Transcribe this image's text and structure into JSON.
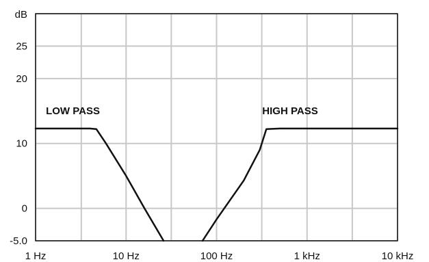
{
  "chart_data": {
    "type": "line",
    "title": "",
    "xlabel": "",
    "ylabel": "dB",
    "x_scale": "log",
    "xlim": [
      1,
      10000
    ],
    "ylim": [
      -5,
      30
    ],
    "grid": true,
    "x_ticks": [
      {
        "value": 1,
        "label": "1 Hz"
      },
      {
        "value": 10,
        "label": "10 Hz"
      },
      {
        "value": 100,
        "label": "100 Hz"
      },
      {
        "value": 1000,
        "label": "1 kHz"
      },
      {
        "value": 10000,
        "label": "10 kHz"
      }
    ],
    "x_minor_gridlines": [
      3.2,
      31.6,
      316,
      3162
    ],
    "y_ticks": [
      {
        "value": -5,
        "label": "-5.0"
      },
      {
        "value": 0,
        "label": "0"
      },
      {
        "value": 10,
        "label": "10"
      },
      {
        "value": 20,
        "label": "20"
      },
      {
        "value": 25,
        "label": "25"
      }
    ],
    "y_gridlines": [
      -5,
      0,
      10,
      20,
      25,
      30
    ],
    "series": [
      {
        "name": "LOW PASS",
        "x": [
          1,
          2,
          4,
          4.7,
          6,
          10,
          16,
          26
        ],
        "y": [
          12.3,
          12.3,
          12.3,
          12.2,
          10,
          5,
          0,
          -5
        ]
      },
      {
        "name": "HIGH PASS",
        "x": [
          70,
          100,
          200,
          300,
          355,
          500,
          10000
        ],
        "y": [
          -5,
          -1.7,
          4.3,
          9,
          12.2,
          12.3,
          12.3
        ]
      }
    ],
    "annotations": [
      {
        "text": "LOW PASS",
        "x": 1.3,
        "y": 14.5
      },
      {
        "text": "HIGH PASS",
        "x": 320,
        "y": 14.5
      }
    ],
    "colors": {
      "line": "#111111",
      "grid": "#c8c8c8",
      "frame": "#111111"
    }
  }
}
